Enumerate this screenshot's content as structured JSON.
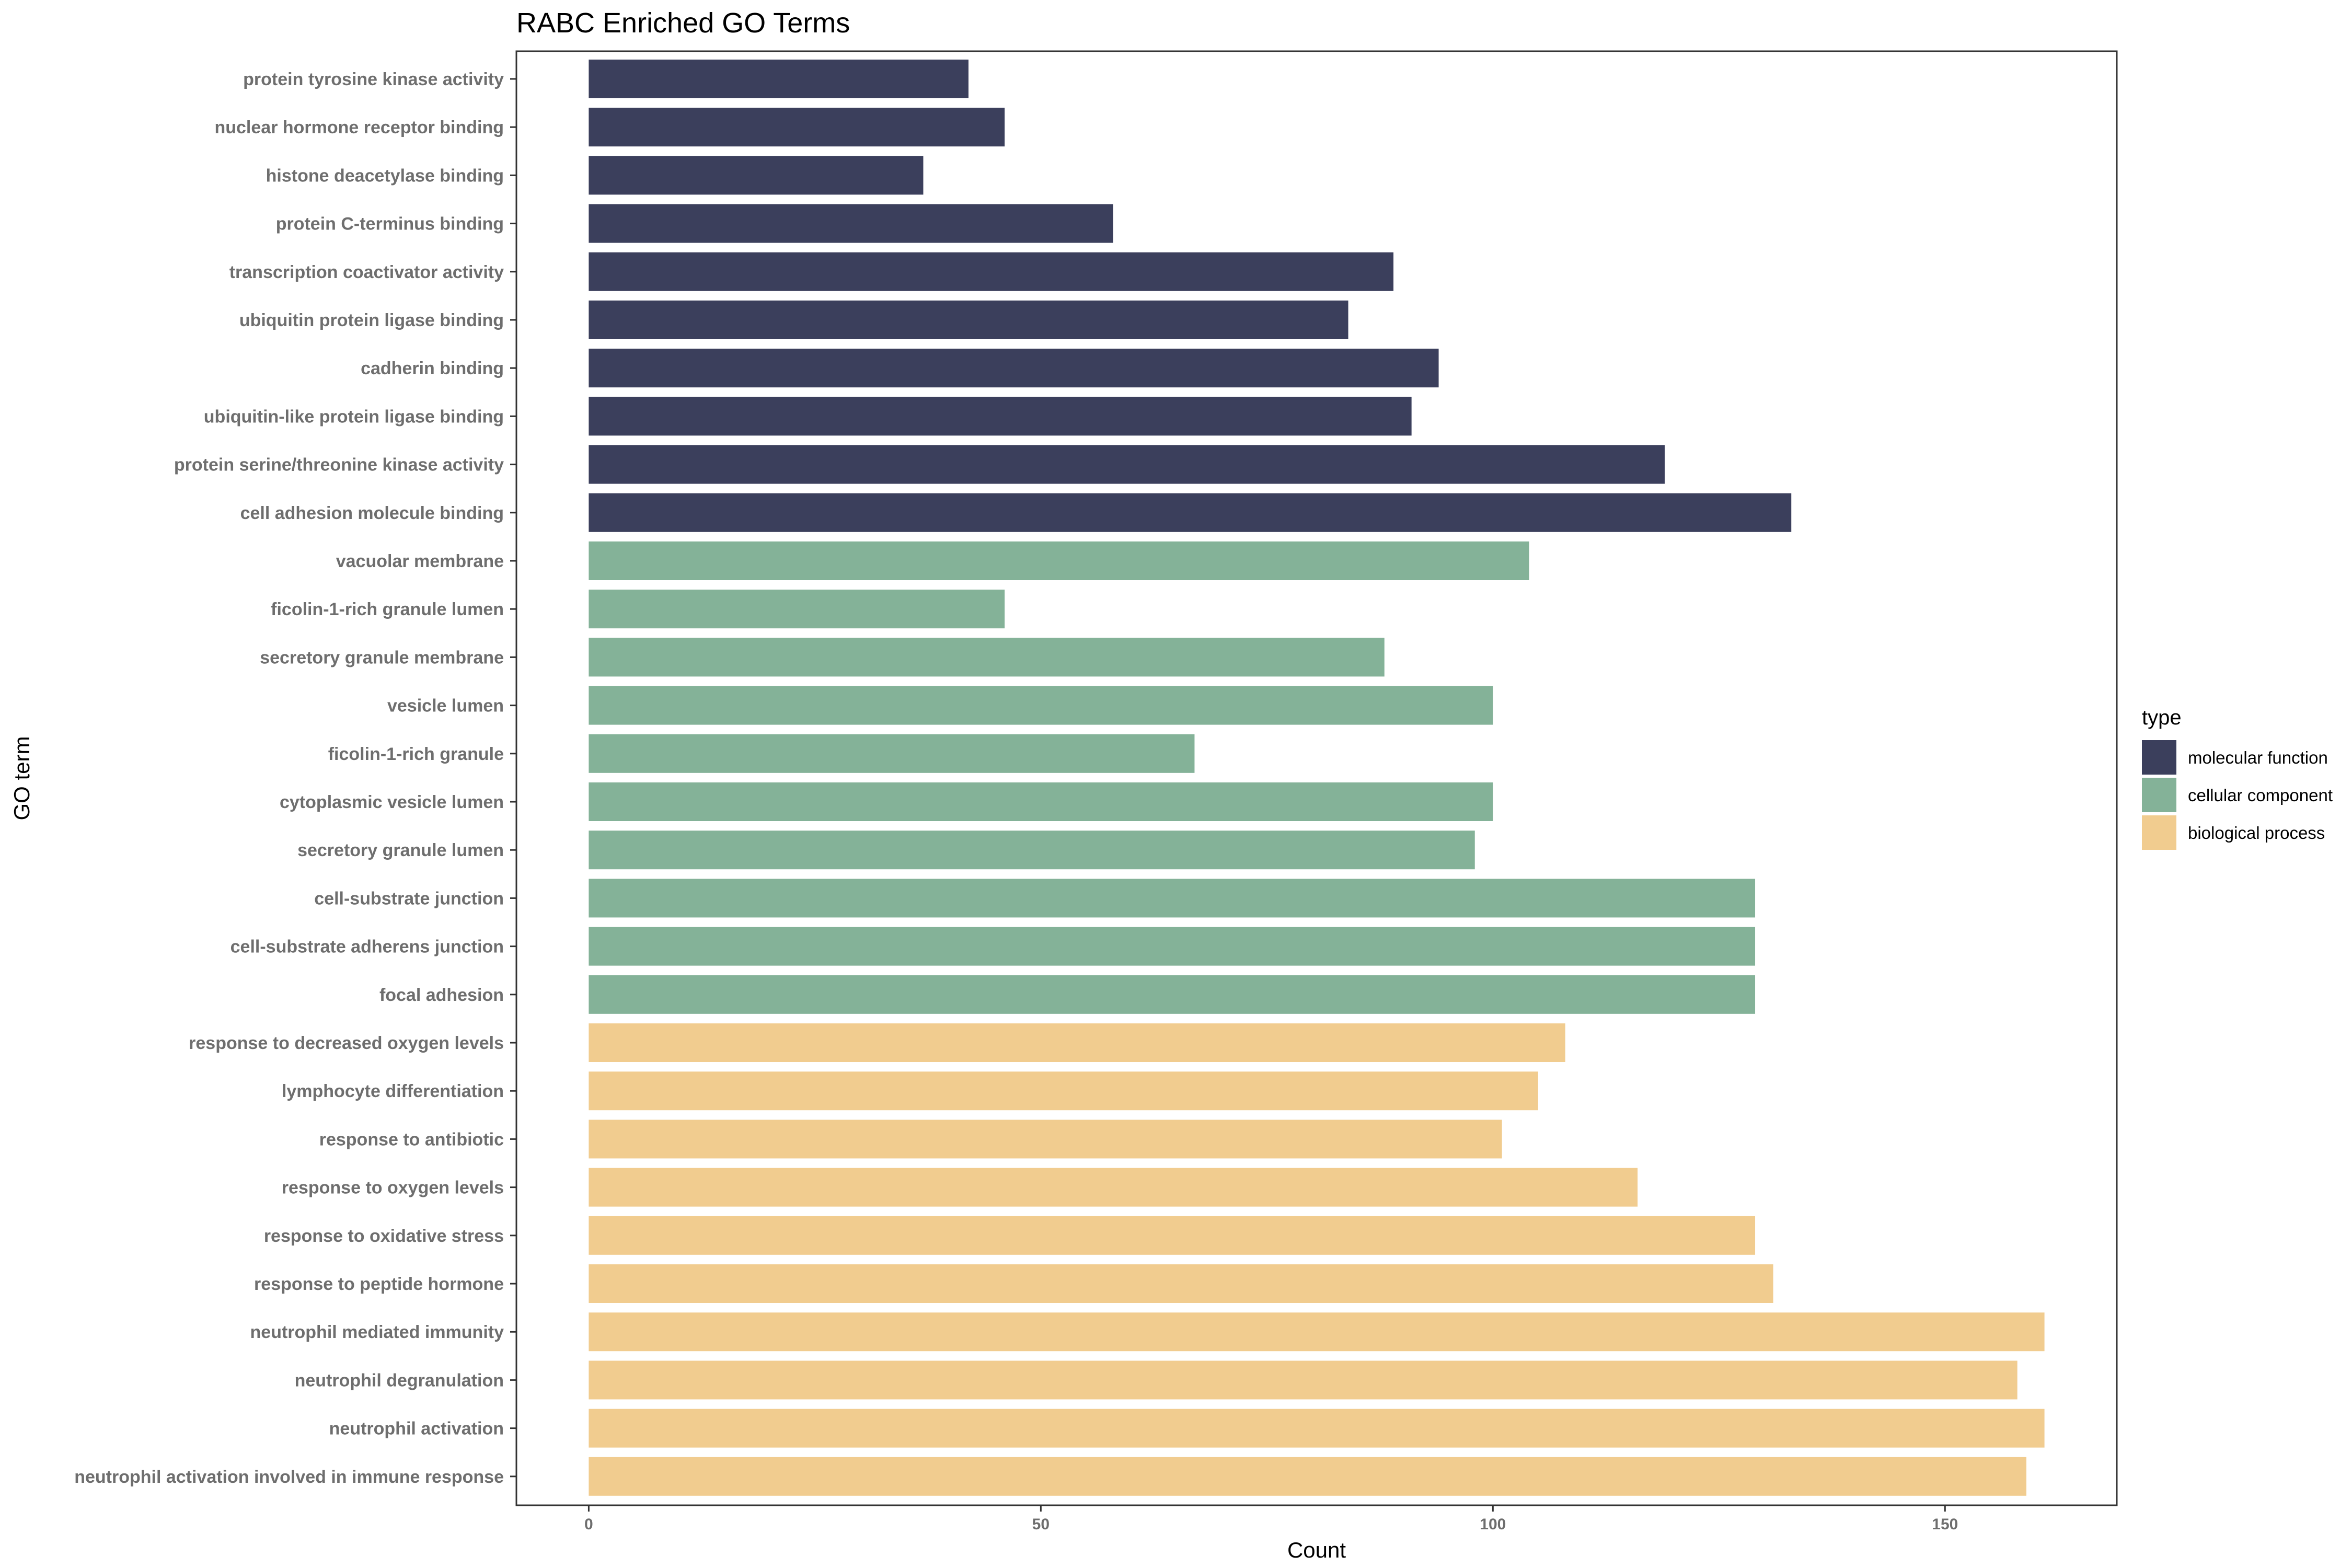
{
  "chart_data": {
    "type": "bar",
    "orientation": "horizontal",
    "title": "RABC Enriched GO Terms",
    "xlabel": "Count",
    "ylabel": "GO term",
    "xlim": [
      -8,
      169
    ],
    "xticks": [
      0,
      50,
      100,
      150
    ],
    "grid": false,
    "legend": {
      "title": "type",
      "position": "right",
      "entries": [
        {
          "name": "molecular function",
          "color": "#3b3f5c"
        },
        {
          "name": "cellular component",
          "color": "#84b298"
        },
        {
          "name": "biological process",
          "color": "#f1cc8f"
        }
      ]
    },
    "bars": [
      {
        "category": "protein tyrosine kinase activity",
        "value": 42,
        "type": "molecular function"
      },
      {
        "category": "nuclear hormone receptor binding",
        "value": 46,
        "type": "molecular function"
      },
      {
        "category": "histone deacetylase binding",
        "value": 37,
        "type": "molecular function"
      },
      {
        "category": "protein C-terminus binding",
        "value": 58,
        "type": "molecular function"
      },
      {
        "category": "transcription coactivator activity",
        "value": 89,
        "type": "molecular function"
      },
      {
        "category": "ubiquitin protein ligase binding",
        "value": 84,
        "type": "molecular function"
      },
      {
        "category": "cadherin binding",
        "value": 94,
        "type": "molecular function"
      },
      {
        "category": "ubiquitin-like protein ligase binding",
        "value": 91,
        "type": "molecular function"
      },
      {
        "category": "protein serine/threonine kinase activity",
        "value": 119,
        "type": "molecular function"
      },
      {
        "category": "cell adhesion molecule binding",
        "value": 133,
        "type": "molecular function"
      },
      {
        "category": "vacuolar membrane",
        "value": 104,
        "type": "cellular component"
      },
      {
        "category": "ficolin-1-rich granule lumen",
        "value": 46,
        "type": "cellular component"
      },
      {
        "category": "secretory granule membrane",
        "value": 88,
        "type": "cellular component"
      },
      {
        "category": "vesicle lumen",
        "value": 100,
        "type": "cellular component"
      },
      {
        "category": "ficolin-1-rich granule",
        "value": 67,
        "type": "cellular component"
      },
      {
        "category": "cytoplasmic vesicle lumen",
        "value": 100,
        "type": "cellular component"
      },
      {
        "category": "secretory granule lumen",
        "value": 98,
        "type": "cellular component"
      },
      {
        "category": "cell-substrate junction",
        "value": 129,
        "type": "cellular component"
      },
      {
        "category": "cell-substrate adherens junction",
        "value": 129,
        "type": "cellular component"
      },
      {
        "category": "focal adhesion",
        "value": 129,
        "type": "cellular component"
      },
      {
        "category": "response to decreased oxygen levels",
        "value": 108,
        "type": "biological process"
      },
      {
        "category": "lymphocyte differentiation",
        "value": 105,
        "type": "biological process"
      },
      {
        "category": "response to antibiotic",
        "value": 101,
        "type": "biological process"
      },
      {
        "category": "response to oxygen levels",
        "value": 116,
        "type": "biological process"
      },
      {
        "category": "response to oxidative stress",
        "value": 129,
        "type": "biological process"
      },
      {
        "category": "response to peptide hormone",
        "value": 131,
        "type": "biological process"
      },
      {
        "category": "neutrophil mediated immunity",
        "value": 161,
        "type": "biological process"
      },
      {
        "category": "neutrophil degranulation",
        "value": 158,
        "type": "biological process"
      },
      {
        "category": "neutrophil activation",
        "value": 161,
        "type": "biological process"
      },
      {
        "category": "neutrophil activation involved in immune response",
        "value": 159,
        "type": "biological process"
      }
    ]
  }
}
